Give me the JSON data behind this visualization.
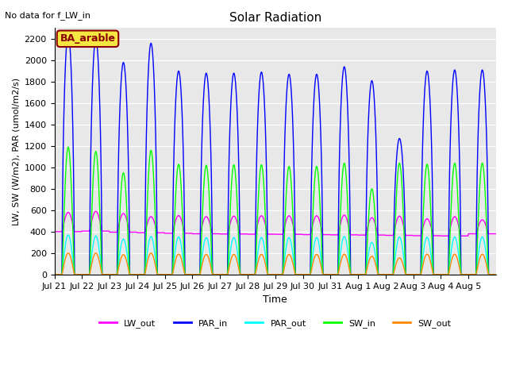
{
  "title": "Solar Radiation",
  "subtitle": "No data for f_LW_in",
  "xlabel": "Time",
  "ylabel": "LW, SW (W/m2), PAR (umol/m2/s)",
  "legend_label": "BA_arable",
  "ylim": [
    0,
    2300
  ],
  "yticks": [
    0,
    200,
    400,
    600,
    800,
    1000,
    1200,
    1400,
    1600,
    1800,
    2000,
    2200
  ],
  "xtick_labels": [
    "Jul 21",
    "Jul 22",
    "Jul 23",
    "Jul 24",
    "Jul 25",
    "Jul 26",
    "Jul 27",
    "Jul 28",
    "Jul 29",
    "Jul 30",
    "Jul 31",
    "Aug 1",
    "Aug 2",
    "Aug 3",
    "Aug 4",
    "Aug 5"
  ],
  "colors": {
    "LW_out": "#ff00ff",
    "PAR_in": "#0000ff",
    "PAR_out": "#00ffff",
    "SW_in": "#00ff00",
    "SW_out": "#ff8800"
  },
  "background_color": "#e8e8e8",
  "n_days": 16,
  "day_peaks": {
    "PAR_in": [
      2250,
      2200,
      1980,
      2160,
      1900,
      1880,
      1880,
      1890,
      1870,
      1870,
      1940,
      1810,
      1270,
      1900,
      1910,
      1910
    ],
    "SW_in": [
      1190,
      1150,
      950,
      1160,
      1030,
      1020,
      1025,
      1025,
      1010,
      1010,
      1040,
      800,
      1040,
      1030,
      1040,
      1040
    ],
    "PAR_out": [
      370,
      360,
      330,
      355,
      350,
      345,
      345,
      345,
      345,
      345,
      355,
      300,
      350,
      348,
      350,
      350
    ],
    "SW_out": [
      200,
      200,
      185,
      200,
      190,
      188,
      188,
      188,
      188,
      188,
      190,
      170,
      155,
      190,
      190,
      190
    ],
    "LW_out_day": [
      580,
      590,
      570,
      540,
      550,
      540,
      545,
      548,
      548,
      548,
      555,
      530,
      545,
      520,
      540,
      510
    ],
    "LW_out_night": [
      400,
      405,
      395,
      390,
      385,
      380,
      378,
      376,
      375,
      372,
      370,
      368,
      365,
      362,
      360,
      380
    ]
  }
}
